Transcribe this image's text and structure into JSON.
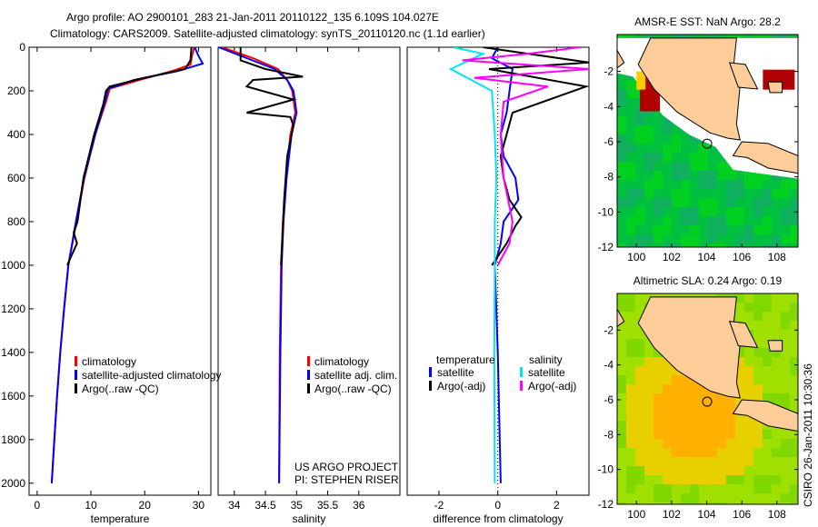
{
  "title_line1": "Argo profile: AO 2900101_283 21-Jan-2011 20110122_135 6.109S 104.027E",
  "title_line2": "Climatology: CARS2009. Satellite-adjusted climatology: synTS_20110120.nc (1.1d earlier)",
  "credit": "CSIRO 26-Jan-2011 10:30:36",
  "colors": {
    "clim": "#ff0000",
    "sat": "#0000ff",
    "argo": "#000000",
    "sal_sat": "#00e5ee",
    "sal_argo": "#ff00ff"
  },
  "chart_data": [
    {
      "type": "line",
      "id": "temp",
      "xlabel": "temperature",
      "ylabel": "",
      "xlim": [
        -1.5,
        32.3
      ],
      "ylim": [
        2055,
        0
      ],
      "xticks": [
        0,
        10,
        20,
        30
      ],
      "yticks": [
        0,
        200,
        400,
        600,
        800,
        1000,
        1200,
        1400,
        1600,
        1800,
        2000
      ],
      "legend": [
        "climatology",
        "satellite-adjusted climatology",
        "Argo(..raw -QC)"
      ],
      "series": [
        {
          "name": "climatology",
          "color": "clim",
          "depth": [
            0,
            40,
            80,
            110,
            150,
            190,
            250,
            400,
            600,
            800,
            1000,
            1200,
            1400,
            1600,
            1800,
            2000
          ],
          "values": [
            29.2,
            28.8,
            28.5,
            25,
            19,
            13.5,
            12.8,
            10.8,
            8.8,
            7.3,
            5.8,
            5.0,
            4.3,
            3.7,
            3.2,
            2.7
          ]
        },
        {
          "name": "satellite-adjusted climatology",
          "color": "sat",
          "depth": [
            0,
            40,
            75,
            110,
            150,
            190,
            250,
            400,
            600,
            800,
            1000,
            1200,
            1400,
            1600,
            1800,
            2000
          ],
          "values": [
            29.3,
            30.0,
            30.8,
            26,
            18,
            13.2,
            12.6,
            10.8,
            8.7,
            7.2,
            5.8,
            5.0,
            4.3,
            3.7,
            3.2,
            2.7
          ]
        },
        {
          "name": "Argo(..raw -QC)",
          "color": "argo",
          "depth": [
            0,
            60,
            100,
            140,
            180,
            200,
            260,
            400,
            600,
            800,
            850,
            900,
            1000
          ],
          "values": [
            28.7,
            28.5,
            27.5,
            20,
            13.5,
            12.8,
            12.3,
            10.6,
            8.6,
            7.5,
            6.8,
            7.4,
            5.6
          ]
        }
      ]
    },
    {
      "type": "line",
      "id": "sal",
      "xlabel": "salinity",
      "xlim": [
        33.74,
        36.66
      ],
      "ylim": [
        2055,
        0
      ],
      "xticks": [
        34,
        34.5,
        35,
        35.5,
        36
      ],
      "legend": [
        "climatology",
        "satellite adj. clim.",
        "Argo(..raw -QC)"
      ],
      "annotation": [
        "US ARGO PROJECT",
        "PI: STEPHEN RISER"
      ],
      "series": [
        {
          "name": "climatology",
          "color": "clim",
          "depth": [
            0,
            50,
            100,
            150,
            200,
            300,
            400,
            600,
            800,
            1000,
            1400,
            2000
          ],
          "values": [
            33.8,
            34.3,
            34.7,
            34.85,
            34.93,
            34.98,
            34.9,
            34.83,
            34.78,
            34.75,
            34.73,
            34.72
          ]
        },
        {
          "name": "satellite adj. clim.",
          "color": "sat",
          "depth": [
            0,
            50,
            100,
            150,
            200,
            300,
            400,
            600,
            800,
            1000,
            1400,
            2000
          ],
          "values": [
            33.75,
            34.2,
            34.65,
            34.85,
            34.95,
            35.0,
            34.92,
            34.84,
            34.79,
            34.76,
            34.74,
            34.72
          ]
        },
        {
          "name": "Argo(..raw -QC)",
          "color": "argo",
          "depth": [
            0,
            30,
            60,
            100,
            135,
            150,
            180,
            240,
            300,
            320,
            360,
            500,
            700,
            900,
            1000
          ],
          "values": [
            34.1,
            34.1,
            34.1,
            34.5,
            35.1,
            34.3,
            34.2,
            34.95,
            34.2,
            34.9,
            34.95,
            34.85,
            34.8,
            34.77,
            34.75
          ]
        }
      ]
    },
    {
      "type": "line",
      "id": "diff",
      "xlabel": "difference from climatology",
      "xlim": [
        -3.08,
        3.1
      ],
      "ylim": [
        2055,
        0
      ],
      "xticks": [
        -2,
        0,
        2
      ],
      "legend_headers": [
        "temperature",
        "salinity"
      ],
      "legend": [
        "satellite",
        "Argo(-adj)",
        "satellite",
        "Argo(-adj)"
      ],
      "series": [
        {
          "name": "temperature satellite",
          "color": "sat",
          "depth": [
            0,
            50,
            100,
            200,
            300,
            400,
            500,
            600,
            700,
            800,
            900,
            1000,
            1400,
            2000
          ],
          "values": [
            0.0,
            -0.2,
            0.5,
            0.4,
            0.3,
            0.1,
            0.2,
            0.6,
            0.7,
            0.2,
            0.1,
            -0.1,
            0.0,
            0.1
          ]
        },
        {
          "name": "temperature Argo(-adj)",
          "color": "argo",
          "depth": [
            0,
            70,
            100,
            180,
            300,
            400,
            500,
            600,
            700,
            780,
            820,
            900,
            1000
          ],
          "values": [
            -0.5,
            3.1,
            -0.3,
            3.0,
            0.5,
            0.3,
            0.1,
            0.2,
            0.4,
            0.8,
            0.6,
            0.3,
            -0.2
          ]
        },
        {
          "name": "salinity satellite",
          "color": "sal_sat",
          "depth": [
            0,
            30,
            100,
            200,
            400,
            600,
            800,
            1000,
            1400,
            2000
          ],
          "values": [
            -1.5,
            -0.5,
            -1.6,
            -0.2,
            -0.1,
            -0.05,
            -0.1,
            -0.1,
            -0.12,
            -0.1
          ]
        },
        {
          "name": "salinity Argo(-adj)",
          "color": "sal_argo",
          "depth": [
            0,
            30,
            60,
            100,
            140,
            180,
            250,
            400,
            600,
            800,
            900,
            1000
          ],
          "values": [
            2.8,
            1.0,
            -1.2,
            3.1,
            -0.8,
            1.7,
            0.2,
            0.1,
            0.2,
            0.5,
            0.4,
            0.0
          ]
        }
      ]
    }
  ],
  "maps": [
    {
      "title": "AMSR-E SST: NaN Argo: 28.2",
      "xticks": [
        "100",
        "102",
        "104",
        "106",
        "108"
      ],
      "yticks": [
        "-2",
        "-4",
        "-6",
        "-8",
        "-10",
        "-12"
      ],
      "palette": [
        "#00c040",
        "#20b050",
        "#ffcc00",
        "#b00000"
      ]
    },
    {
      "title": "Altimetric SLA: 0.24 Argo: 0.19",
      "xticks": [
        "100",
        "102",
        "104",
        "106",
        "108"
      ],
      "yticks": [
        "-2",
        "-4",
        "-6",
        "-8",
        "-10",
        "-12"
      ],
      "palette": [
        "#a0e000",
        "#ffb000",
        "#40c040"
      ]
    }
  ]
}
